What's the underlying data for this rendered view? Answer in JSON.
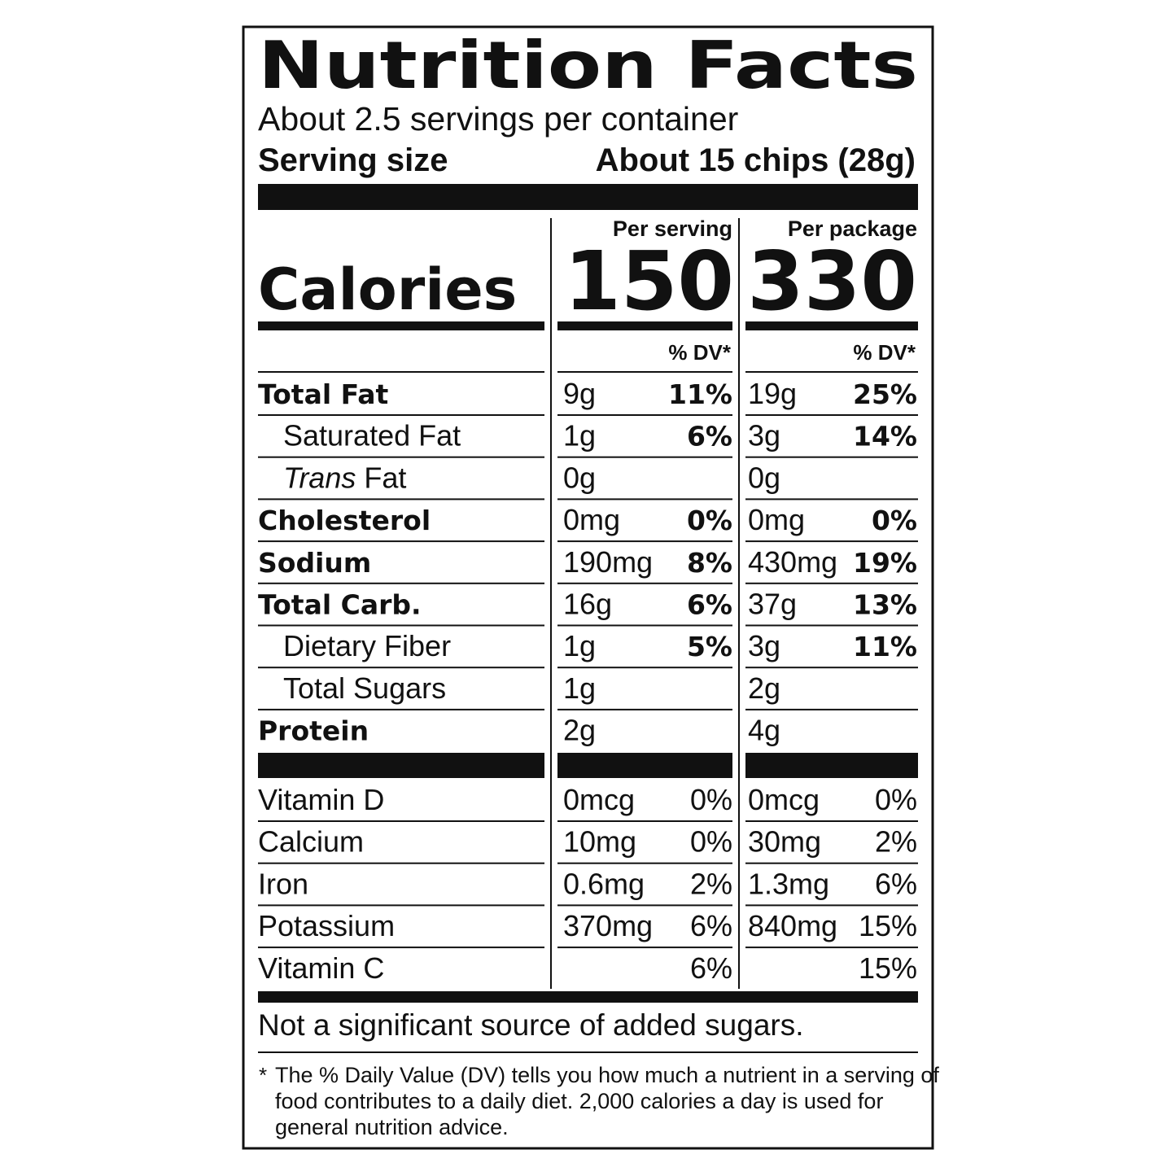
{
  "header": {
    "title": "Nutrition Facts",
    "servings": "About 2.5 servings per container",
    "serving_size_label": "Serving size",
    "serving_size_value": "About 15 chips (28g)"
  },
  "columns": [
    "Per serving",
    "Per package"
  ],
  "calories": {
    "label": "Calories",
    "values": [
      "150",
      "330"
    ]
  },
  "dv_header": [
    "% DV*",
    "% DV*"
  ],
  "nutrients": [
    {
      "label": "Total Fat",
      "bold": true,
      "serving": {
        "amount": "9g",
        "dv": "11%"
      },
      "package": {
        "amount": "19g",
        "dv": "25%"
      }
    },
    {
      "label": "Saturated Fat",
      "indent": true,
      "serving": {
        "amount": "1g",
        "dv": "6%"
      },
      "package": {
        "amount": "3g",
        "dv": "14%"
      }
    },
    {
      "label_italic": "Trans",
      "label": "Fat",
      "indent": true,
      "serving": {
        "amount": "0g"
      },
      "package": {
        "amount": "0g"
      }
    },
    {
      "label": "Cholesterol",
      "bold": true,
      "serving": {
        "amount": "0mg",
        "dv": "0%"
      },
      "package": {
        "amount": "0mg",
        "dv": "0%"
      }
    },
    {
      "label": "Sodium",
      "bold": true,
      "serving": {
        "amount": "190mg",
        "dv": "8%"
      },
      "package": {
        "amount": "430mg",
        "dv": "19%"
      }
    },
    {
      "label": "Total Carb.",
      "bold": true,
      "serving": {
        "amount": "16g",
        "dv": "6%"
      },
      "package": {
        "amount": "37g",
        "dv": "13%"
      }
    },
    {
      "label": "Dietary Fiber",
      "indent": true,
      "serving": {
        "amount": "1g",
        "dv": "5%"
      },
      "package": {
        "amount": "3g",
        "dv": "11%"
      }
    },
    {
      "label": "Total Sugars",
      "indent": true,
      "serving": {
        "amount": "1g"
      },
      "package": {
        "amount": "2g"
      }
    },
    {
      "label": "Protein",
      "bold": true,
      "serving": {
        "amount": "2g"
      },
      "package": {
        "amount": "4g"
      }
    }
  ],
  "vitamins": [
    {
      "label": "Vitamin D",
      "serving": {
        "amount": "0mcg",
        "dv": "0%"
      },
      "package": {
        "amount": "0mcg",
        "dv": "0%"
      }
    },
    {
      "label": "Calcium",
      "serving": {
        "amount": "10mg",
        "dv": "0%"
      },
      "package": {
        "amount": "30mg",
        "dv": "2%"
      }
    },
    {
      "label": "Iron",
      "serving": {
        "amount": "0.6mg",
        "dv": "2%"
      },
      "package": {
        "amount": "1.3mg",
        "dv": "6%"
      }
    },
    {
      "label": "Potassium",
      "serving": {
        "amount": "370mg",
        "dv": "6%"
      },
      "package": {
        "amount": "840mg",
        "dv": "15%"
      }
    },
    {
      "label": "Vitamin C",
      "serving": {
        "dv": "6%"
      },
      "package": {
        "dv": "15%"
      }
    }
  ],
  "footer": {
    "note": "Not a significant source of added sugars.",
    "footnote_mark": "*",
    "footnote": [
      "The % Daily Value (DV) tells you how much a nutrient in a serving of",
      "food contributes to a daily diet. 2,000 calories a day is used for",
      "general nutrition advice."
    ]
  }
}
